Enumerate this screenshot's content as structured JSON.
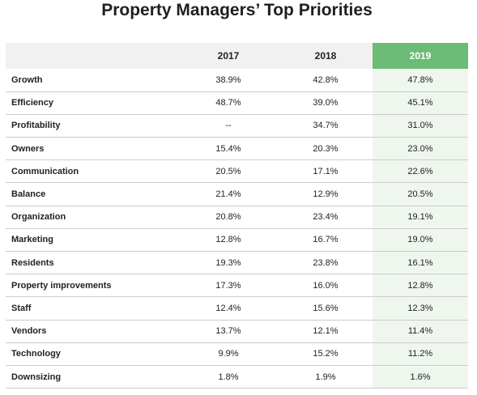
{
  "chart_data": {
    "type": "table",
    "title": "Property Managers’ Top Priorities",
    "columns": [
      "2017",
      "2018",
      "2019"
    ],
    "highlight_column": "2019",
    "highlight_color": "#6cbb76",
    "rows": [
      {
        "label": "Growth",
        "values": [
          "38.9%",
          "42.8%",
          "47.8%"
        ]
      },
      {
        "label": "Efficiency",
        "values": [
          "48.7%",
          "39.0%",
          "45.1%"
        ]
      },
      {
        "label": "Profitability",
        "values": [
          "--",
          "34.7%",
          "31.0%"
        ]
      },
      {
        "label": "Owners",
        "values": [
          "15.4%",
          "20.3%",
          "23.0%"
        ]
      },
      {
        "label": "Communication",
        "values": [
          "20.5%",
          "17.1%",
          "22.6%"
        ]
      },
      {
        "label": "Balance",
        "values": [
          "21.4%",
          "12.9%",
          "20.5%"
        ]
      },
      {
        "label": "Organization",
        "values": [
          "20.8%",
          "23.4%",
          "19.1%"
        ]
      },
      {
        "label": "Marketing",
        "values": [
          "12.8%",
          "16.7%",
          "19.0%"
        ]
      },
      {
        "label": "Residents",
        "values": [
          "19.3%",
          "23.8%",
          "16.1%"
        ]
      },
      {
        "label": "Property improvements",
        "values": [
          "17.3%",
          "16.0%",
          "12.8%"
        ]
      },
      {
        "label": "Staff",
        "values": [
          "12.4%",
          "15.6%",
          "12.3%"
        ]
      },
      {
        "label": "Vendors",
        "values": [
          "13.7%",
          "12.1%",
          "11.4%"
        ]
      },
      {
        "label": "Technology",
        "values": [
          "9.9%",
          "15.2%",
          "11.2%"
        ]
      },
      {
        "label": "Downsizing",
        "values": [
          "1.8%",
          "1.9%",
          "1.6%"
        ]
      }
    ]
  }
}
